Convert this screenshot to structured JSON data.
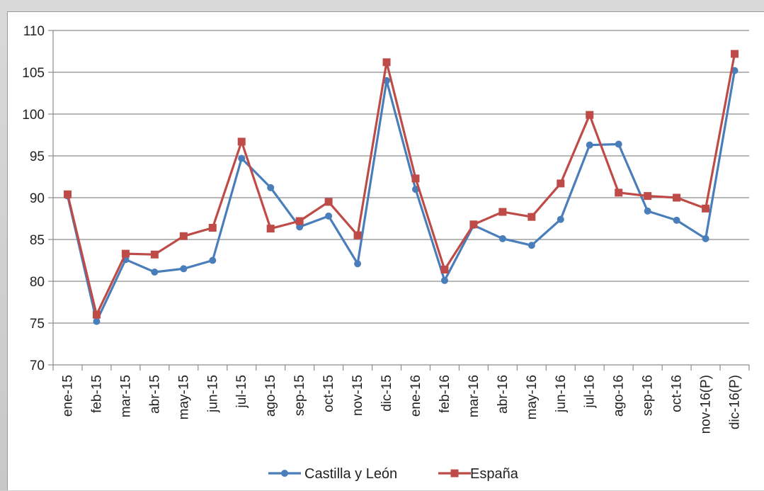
{
  "chart_data": {
    "type": "line",
    "title": "",
    "xlabel": "",
    "ylabel": "",
    "ylim": [
      70,
      110
    ],
    "yticks": [
      "70",
      "75",
      "80",
      "85",
      "90",
      "95",
      "100",
      "105",
      "110"
    ],
    "grid": true,
    "legend_position": "bottom",
    "categories": [
      "ene-15",
      "feb-15",
      "mar-15",
      "abr-15",
      "may-15",
      "jun-15",
      "jul-15",
      "ago-15",
      "sep-15",
      "oct-15",
      "nov-15",
      "dic-15",
      "ene-16",
      "feb-16",
      "mar-16",
      "abr-16",
      "may-16",
      "jun-16",
      "jul-16",
      "ago-16",
      "sep-16",
      "oct-16",
      "nov-16(P)",
      "dic-16(P)"
    ],
    "series": [
      {
        "name": "Castilla y León",
        "color": "#4a7ebb",
        "marker": "circle",
        "values": [
          90.2,
          75.2,
          82.6,
          81.1,
          81.5,
          82.5,
          94.7,
          91.2,
          86.5,
          87.8,
          82.1,
          104.0,
          91.0,
          80.1,
          86.7,
          85.1,
          84.3,
          87.4,
          96.3,
          96.4,
          88.4,
          87.3,
          85.1,
          105.2
        ]
      },
      {
        "name": "España",
        "color": "#be4b48",
        "marker": "square",
        "values": [
          90.4,
          76.0,
          83.3,
          83.2,
          85.4,
          86.4,
          96.7,
          86.3,
          87.2,
          89.5,
          85.5,
          106.2,
          92.3,
          81.4,
          86.8,
          88.3,
          87.7,
          91.7,
          99.9,
          90.6,
          90.2,
          90.0,
          88.7,
          107.2
        ]
      }
    ]
  }
}
